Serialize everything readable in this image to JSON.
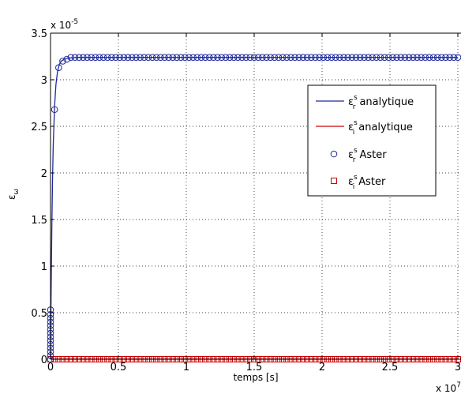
{
  "chart_data": {
    "type": "line",
    "xlabel": "temps [s]",
    "ylabel": "ε",
    "ylabel_sub": "ω",
    "x_exponent_label": "x 10",
    "x_exponent": "7",
    "y_exponent_label": "x 10",
    "y_exponent": "-5",
    "xlim": [
      0,
      3
    ],
    "ylim": [
      0,
      3.5
    ],
    "xticks": [
      0,
      0.5,
      1,
      1.5,
      2,
      2.5,
      3
    ],
    "xtick_labels": [
      "0",
      "0.5",
      "1",
      "1.5",
      "2",
      "2.5",
      "3"
    ],
    "yticks": [
      0,
      0.5,
      1,
      1.5,
      2,
      2.5,
      3,
      3.5
    ],
    "ytick_labels": [
      "0",
      "0.5",
      "1",
      "1.5",
      "2",
      "2.5",
      "3",
      "3.5"
    ],
    "grid": true,
    "legend_position": "upper-right",
    "series": [
      {
        "name": "analytique",
        "symbol": "ε",
        "sup": "s",
        "sub": "r",
        "style": "line",
        "color": "#1f2a9c",
        "x": [
          0,
          0.002,
          0.005,
          0.01,
          0.015,
          0.02,
          0.03,
          0.04,
          0.05,
          0.06,
          0.07,
          0.08,
          0.1,
          0.12,
          0.15,
          0.2,
          0.3,
          0.5,
          1.0,
          2.0,
          3.0
        ],
        "y": [
          0,
          0.35,
          0.8,
          1.45,
          1.95,
          2.3,
          2.72,
          2.95,
          3.07,
          3.14,
          3.18,
          3.2,
          3.22,
          3.23,
          3.235,
          3.24,
          3.24,
          3.24,
          3.24,
          3.24,
          3.24
        ]
      },
      {
        "name": "analytique",
        "symbol": "ε",
        "sup": "s",
        "sub": "i",
        "style": "line",
        "color": "#cc0000",
        "x": [
          0,
          3.0
        ],
        "y": [
          0.002,
          0.002
        ]
      },
      {
        "name": "Aster",
        "symbol": "ε",
        "sup": "s",
        "sub": "r",
        "style": "marker-circle",
        "color": "#1f2a9c",
        "early_points": [
          [
            0.0,
            0.0
          ],
          [
            0.0,
            0.04
          ],
          [
            0.0,
            0.08
          ],
          [
            0.0,
            0.12
          ],
          [
            0.0,
            0.16
          ],
          [
            0.0,
            0.2
          ],
          [
            0.0,
            0.24
          ],
          [
            0.0,
            0.28
          ],
          [
            0.0,
            0.32
          ],
          [
            0.0,
            0.36
          ],
          [
            0.0,
            0.4
          ],
          [
            0.0,
            0.44
          ],
          [
            0.0,
            0.48
          ],
          [
            0.0,
            0.53
          ],
          [
            0.03,
            2.68
          ],
          [
            0.06,
            3.13
          ],
          [
            0.09,
            3.2
          ],
          [
            0.12,
            3.22
          ]
        ],
        "plateau_start": 0.15,
        "plateau_step": 0.03,
        "plateau_end": 3.0,
        "plateau_value": 3.24
      },
      {
        "name": "Aster",
        "symbol": "ε",
        "sup": "s",
        "sub": "i",
        "style": "marker-square",
        "color": "#cc0000",
        "start": 0.0,
        "step": 0.03,
        "end": 3.0,
        "value": 0.0
      }
    ]
  }
}
